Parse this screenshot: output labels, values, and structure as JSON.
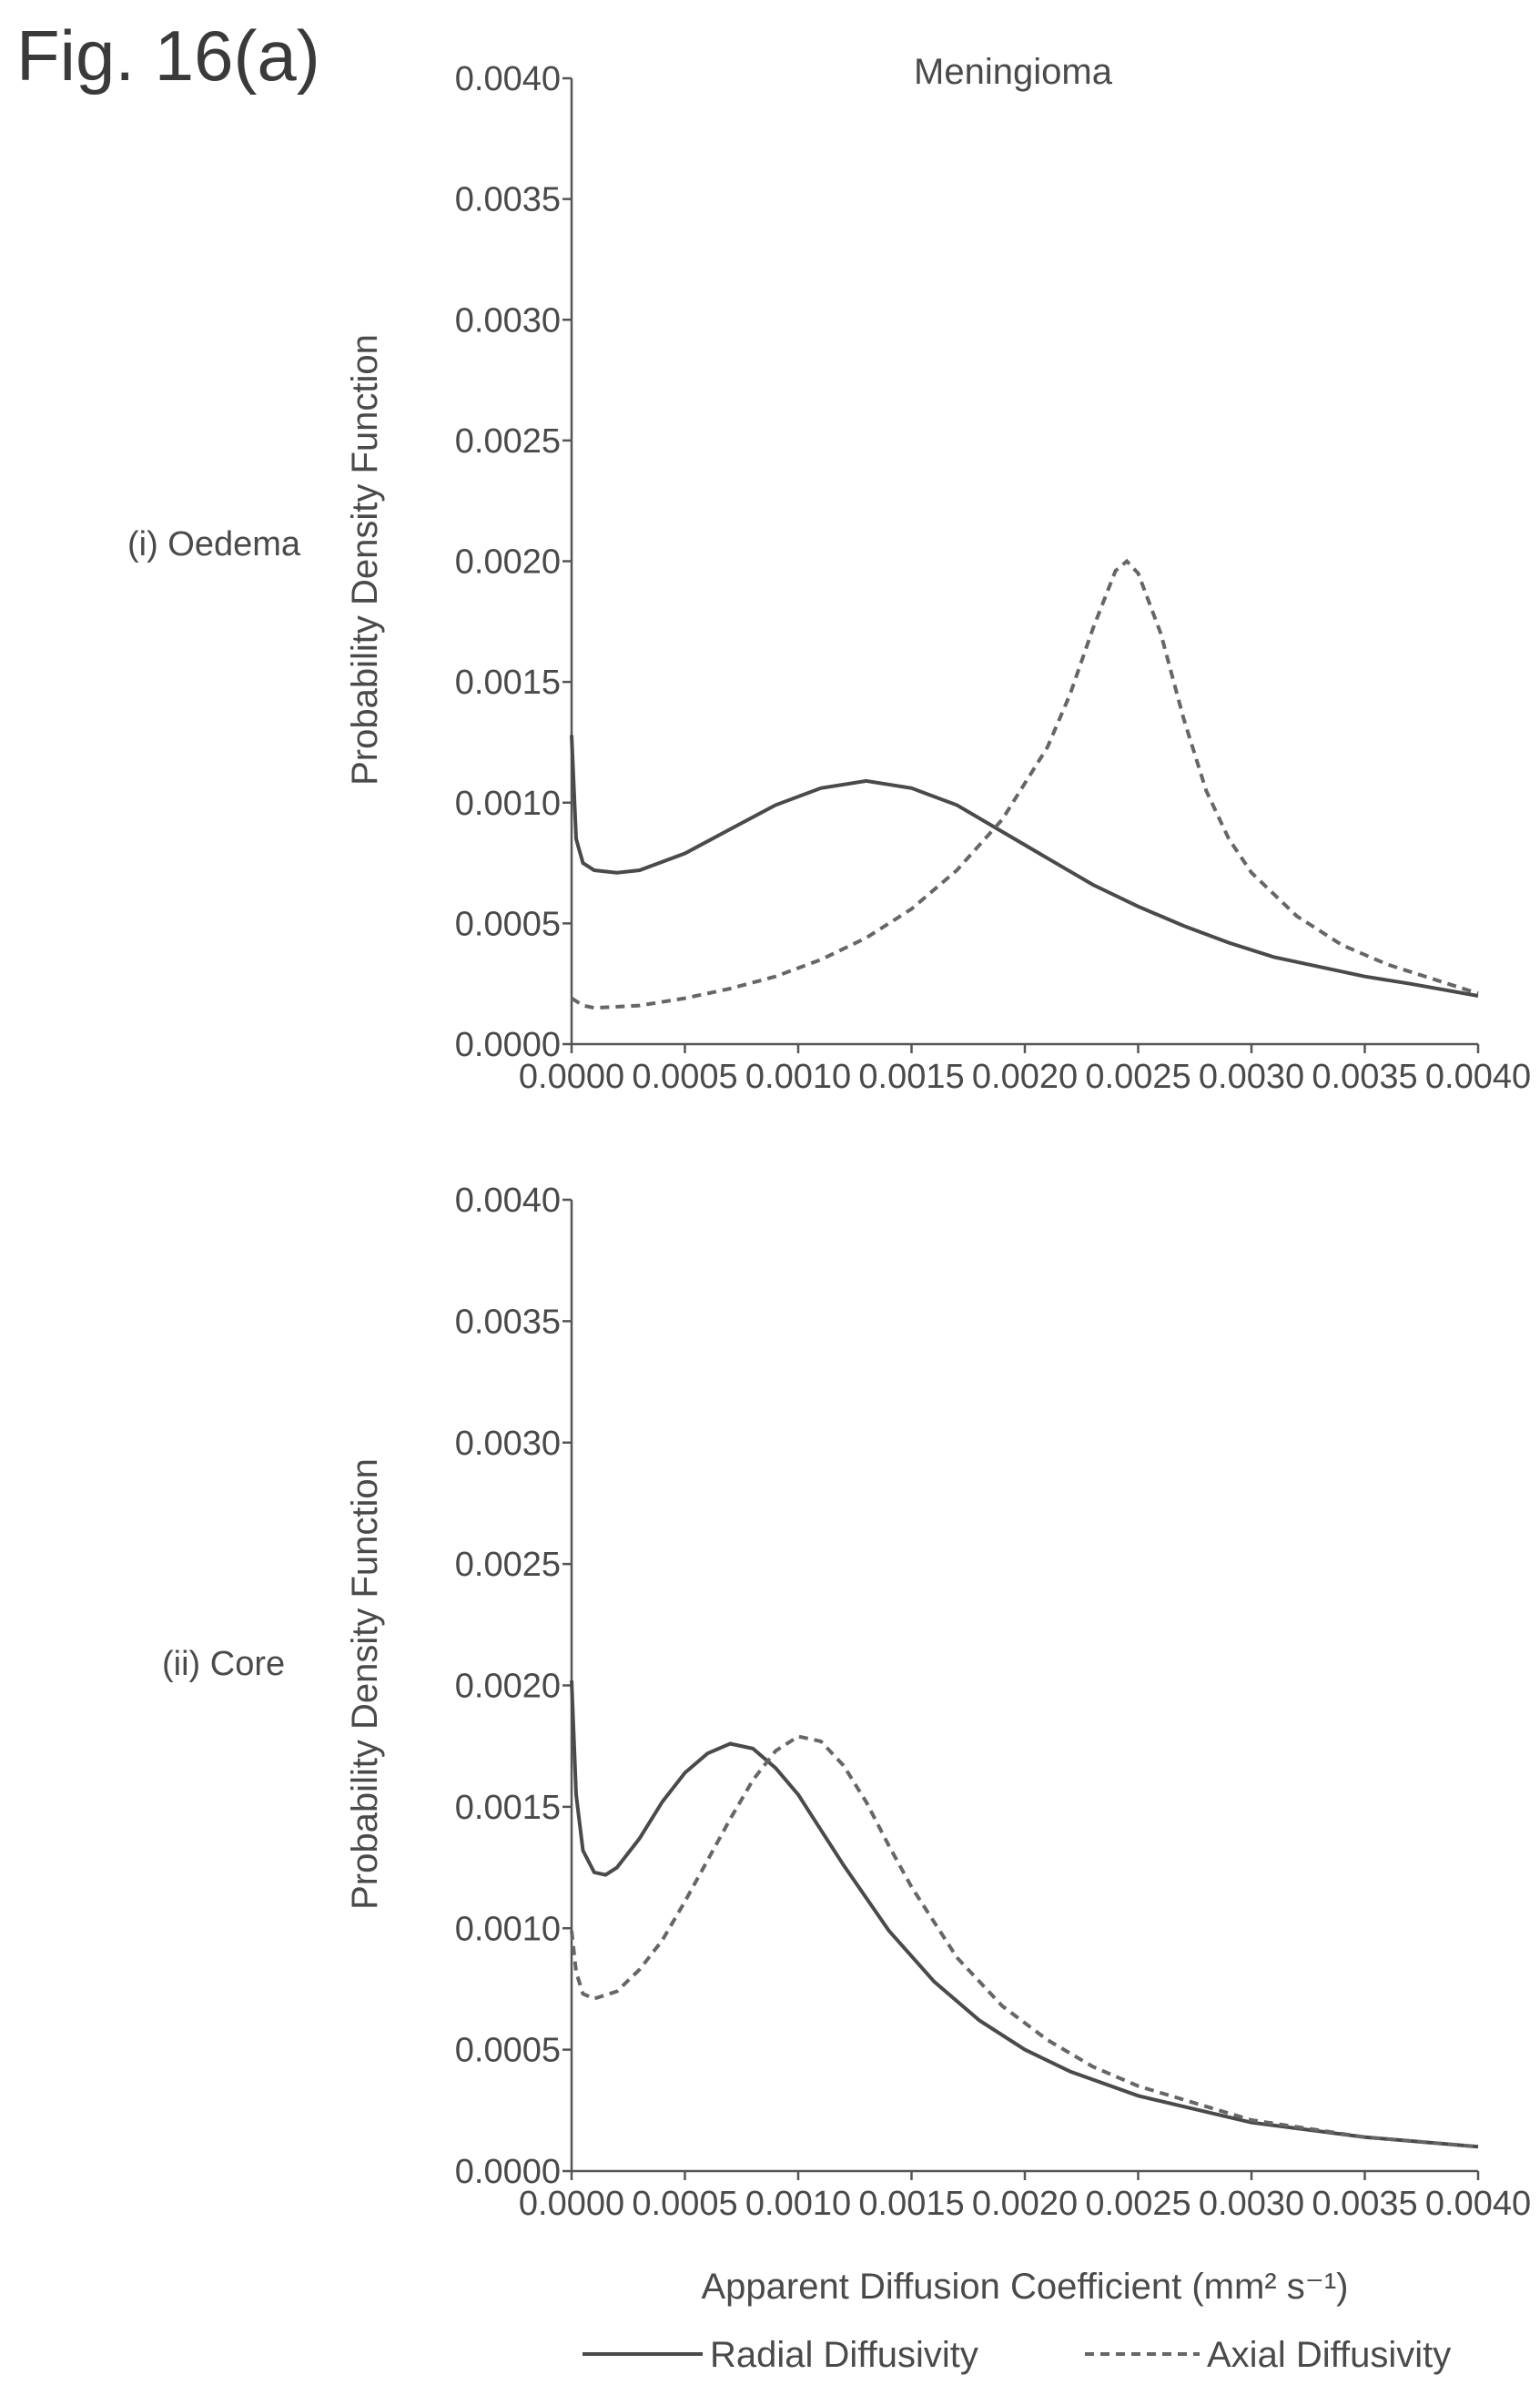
{
  "figure_label": "Fig. 16(a)",
  "chart_title": "Meningioma",
  "legend": {
    "radial": "Radial Diffusivity",
    "axial": "Axial Diffusivity"
  },
  "colors": {
    "radial": "#4a4a4a",
    "axial": "#666666"
  },
  "chart_data": [
    {
      "type": "line",
      "panel_label": "(i) Oedema",
      "title": "Meningioma",
      "xlabel": "",
      "ylabel": "Probability Density Function",
      "xlim": [
        0,
        0.004
      ],
      "ylim": [
        0,
        0.004
      ],
      "x_ticks": [
        "0.0000",
        "0.0005",
        "0.0010",
        "0.0015",
        "0.0020",
        "0.0025",
        "0.0030",
        "0.0035",
        "0.0040"
      ],
      "y_ticks": [
        "0.0000",
        "0.0005",
        "0.0010",
        "0.0015",
        "0.0020",
        "0.0025",
        "0.0030",
        "0.0035",
        "0.0040"
      ],
      "grid": false,
      "series": [
        {
          "name": "Radial Diffusivity",
          "style": "solid",
          "points": [
            [
              0,
              0.00128
            ],
            [
              2e-05,
              0.00085
            ],
            [
              5e-05,
              0.00075
            ],
            [
              0.0001,
              0.00072
            ],
            [
              0.0002,
              0.00071
            ],
            [
              0.0003,
              0.00072
            ],
            [
              0.0005,
              0.00079
            ],
            [
              0.0007,
              0.00089
            ],
            [
              0.0009,
              0.00099
            ],
            [
              0.0011,
              0.00106
            ],
            [
              0.0013,
              0.00109
            ],
            [
              0.0015,
              0.00106
            ],
            [
              0.0017,
              0.00099
            ],
            [
              0.0019,
              0.00088
            ],
            [
              0.0021,
              0.00077
            ],
            [
              0.0023,
              0.00066
            ],
            [
              0.0025,
              0.00057
            ],
            [
              0.0027,
              0.00049
            ],
            [
              0.0029,
              0.00042
            ],
            [
              0.0031,
              0.00036
            ],
            [
              0.0033,
              0.00032
            ],
            [
              0.0035,
              0.00028
            ],
            [
              0.0037,
              0.00025
            ],
            [
              0.004,
              0.0002
            ]
          ]
        },
        {
          "name": "Axial Diffusivity",
          "style": "dashed",
          "points": [
            [
              0,
              0.00019
            ],
            [
              5e-05,
              0.00016
            ],
            [
              0.0001,
              0.00015
            ],
            [
              0.0003,
              0.00016
            ],
            [
              0.0005,
              0.00019
            ],
            [
              0.0007,
              0.00023
            ],
            [
              0.0009,
              0.00028
            ],
            [
              0.0011,
              0.00035
            ],
            [
              0.0013,
              0.00044
            ],
            [
              0.0015,
              0.00056
            ],
            [
              0.0017,
              0.00072
            ],
            [
              0.0019,
              0.00093
            ],
            [
              0.0021,
              0.00123
            ],
            [
              0.0022,
              0.00145
            ],
            [
              0.0023,
              0.00172
            ],
            [
              0.0024,
              0.00196
            ],
            [
              0.00245,
              0.002
            ],
            [
              0.0025,
              0.00195
            ],
            [
              0.0026,
              0.0017
            ],
            [
              0.0027,
              0.00135
            ],
            [
              0.0028,
              0.00105
            ],
            [
              0.0029,
              0.00085
            ],
            [
              0.003,
              0.00071
            ],
            [
              0.0032,
              0.00053
            ],
            [
              0.0034,
              0.00041
            ],
            [
              0.0036,
              0.00033
            ],
            [
              0.0038,
              0.00027
            ],
            [
              0.004,
              0.00021
            ]
          ]
        }
      ]
    },
    {
      "type": "line",
      "panel_label": "(ii) Core",
      "title": "",
      "xlabel": "Apparent Diffusion Coefficient (mm² s⁻¹)",
      "ylabel": "Probability Density Function",
      "xlim": [
        0,
        0.004
      ],
      "ylim": [
        0,
        0.004
      ],
      "x_ticks": [
        "0.0000",
        "0.0005",
        "0.0010",
        "0.0015",
        "0.0020",
        "0.0025",
        "0.0030",
        "0.0035",
        "0.0040"
      ],
      "y_ticks": [
        "0.0000",
        "0.0005",
        "0.0010",
        "0.0015",
        "0.0020",
        "0.0025",
        "0.0030",
        "0.0035",
        "0.0040"
      ],
      "grid": false,
      "series": [
        {
          "name": "Radial Diffusivity",
          "style": "solid",
          "points": [
            [
              0,
              0.00202
            ],
            [
              2e-05,
              0.00155
            ],
            [
              5e-05,
              0.00132
            ],
            [
              0.0001,
              0.00123
            ],
            [
              0.00015,
              0.00122
            ],
            [
              0.0002,
              0.00125
            ],
            [
              0.0003,
              0.00137
            ],
            [
              0.0004,
              0.00152
            ],
            [
              0.0005,
              0.00164
            ],
            [
              0.0006,
              0.00172
            ],
            [
              0.0007,
              0.00176
            ],
            [
              0.0008,
              0.00174
            ],
            [
              0.0009,
              0.00166
            ],
            [
              0.001,
              0.00155
            ],
            [
              0.0012,
              0.00126
            ],
            [
              0.0014,
              0.00099
            ],
            [
              0.0016,
              0.00078
            ],
            [
              0.0018,
              0.00062
            ],
            [
              0.002,
              0.0005
            ],
            [
              0.0022,
              0.00041
            ],
            [
              0.0025,
              0.00031
            ],
            [
              0.003,
              0.0002
            ],
            [
              0.0035,
              0.00014
            ],
            [
              0.004,
              0.0001
            ]
          ]
        },
        {
          "name": "Axial Diffusivity",
          "style": "dashed",
          "points": [
            [
              0,
              0.00099
            ],
            [
              2e-05,
              0.00082
            ],
            [
              5e-05,
              0.00073
            ],
            [
              0.0001,
              0.00071
            ],
            [
              0.0002,
              0.00074
            ],
            [
              0.0003,
              0.00083
            ],
            [
              0.0004,
              0.00095
            ],
            [
              0.0005,
              0.00111
            ],
            [
              0.0006,
              0.00128
            ],
            [
              0.0007,
              0.00145
            ],
            [
              0.0008,
              0.00161
            ],
            [
              0.0009,
              0.00173
            ],
            [
              0.001,
              0.00179
            ],
            [
              0.0011,
              0.00177
            ],
            [
              0.0012,
              0.00167
            ],
            [
              0.0013,
              0.00152
            ],
            [
              0.0014,
              0.00134
            ],
            [
              0.0015,
              0.00117
            ],
            [
              0.0017,
              0.00088
            ],
            [
              0.0019,
              0.00068
            ],
            [
              0.0021,
              0.00054
            ],
            [
              0.0023,
              0.00043
            ],
            [
              0.0025,
              0.00035
            ],
            [
              0.003,
              0.00021
            ],
            [
              0.0035,
              0.00014
            ],
            [
              0.004,
              0.0001
            ]
          ]
        }
      ]
    }
  ]
}
